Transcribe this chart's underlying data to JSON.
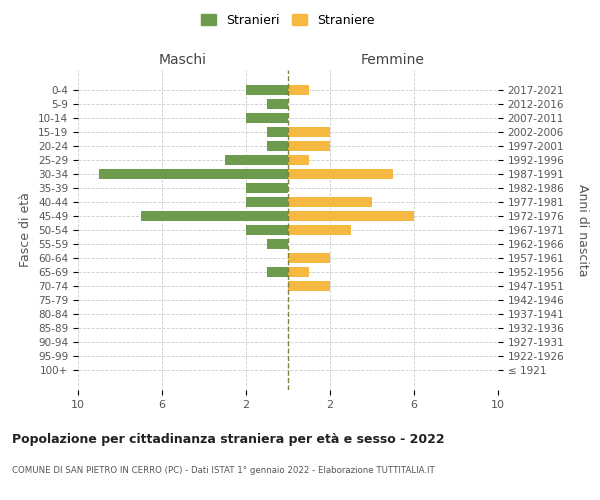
{
  "age_groups": [
    "100+",
    "95-99",
    "90-94",
    "85-89",
    "80-84",
    "75-79",
    "70-74",
    "65-69",
    "60-64",
    "55-59",
    "50-54",
    "45-49",
    "40-44",
    "35-39",
    "30-34",
    "25-29",
    "20-24",
    "15-19",
    "10-14",
    "5-9",
    "0-4"
  ],
  "birth_years": [
    "≤ 1921",
    "1922-1926",
    "1927-1931",
    "1932-1936",
    "1937-1941",
    "1942-1946",
    "1947-1951",
    "1952-1956",
    "1957-1961",
    "1962-1966",
    "1967-1971",
    "1972-1976",
    "1977-1981",
    "1982-1986",
    "1987-1991",
    "1992-1996",
    "1997-2001",
    "2002-2006",
    "2007-2011",
    "2012-2016",
    "2017-2021"
  ],
  "males": [
    0,
    0,
    0,
    0,
    0,
    0,
    0,
    1,
    0,
    1,
    2,
    7,
    2,
    2,
    9,
    3,
    1,
    1,
    2,
    1,
    2
  ],
  "females": [
    0,
    0,
    0,
    0,
    0,
    0,
    2,
    1,
    2,
    0,
    3,
    6,
    4,
    0,
    5,
    1,
    2,
    2,
    0,
    0,
    1
  ],
  "male_color": "#6d9b4e",
  "female_color": "#f5b942",
  "background_color": "#ffffff",
  "grid_color": "#cccccc",
  "center_line_color": "#808040",
  "title": "Popolazione per cittadinanza straniera per età e sesso - 2022",
  "subtitle": "COMUNE DI SAN PIETRO IN CERRO (PC) - Dati ISTAT 1° gennaio 2022 - Elaborazione TUTTITALIA.IT",
  "xlabel_left": "Maschi",
  "xlabel_right": "Femmine",
  "ylabel_left": "Fasce di età",
  "ylabel_right": "Anni di nascita",
  "legend_male": "Stranieri",
  "legend_female": "Straniere",
  "xlim": 10
}
